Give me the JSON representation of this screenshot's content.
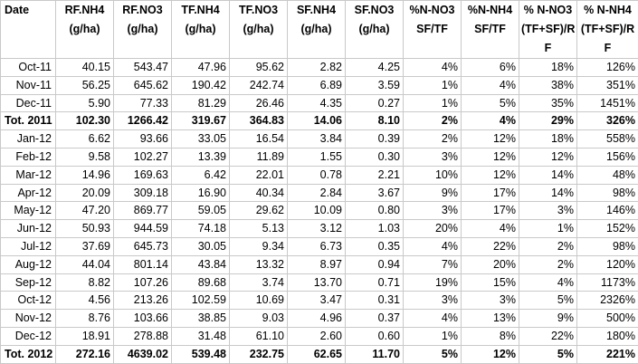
{
  "headers": [
    {
      "lines": [
        "Date"
      ]
    },
    {
      "lines": [
        "RF.NH4",
        "(g/ha)"
      ]
    },
    {
      "lines": [
        "RF.NO3",
        "(g/ha)"
      ]
    },
    {
      "lines": [
        "TF.NH4",
        "(g/ha)"
      ]
    },
    {
      "lines": [
        "TF.NO3",
        "(g/ha)"
      ]
    },
    {
      "lines": [
        "SF.NH4",
        "(g/ha)"
      ]
    },
    {
      "lines": [
        "SF.NO3",
        "(g/ha)"
      ]
    },
    {
      "lines": [
        "%N-NO3",
        "SF/TF"
      ]
    },
    {
      "lines": [
        "%N-NH4",
        "SF/TF"
      ]
    },
    {
      "lines": [
        "% N-NO3",
        "(TF+SF)/R",
        "F"
      ]
    },
    {
      "lines": [
        "% N-NH4",
        "(TF+SF)/R",
        "F"
      ]
    }
  ],
  "rows": [
    {
      "total": false,
      "cells": [
        "Oct-11",
        "40.15",
        "543.47",
        "47.96",
        "95.62",
        "2.82",
        "4.25",
        "4%",
        "6%",
        "18%",
        "126%"
      ]
    },
    {
      "total": false,
      "cells": [
        "Nov-11",
        "56.25",
        "645.62",
        "190.42",
        "242.74",
        "6.89",
        "3.59",
        "1%",
        "4%",
        "38%",
        "351%"
      ]
    },
    {
      "total": false,
      "cells": [
        "Dec-11",
        "5.90",
        "77.33",
        "81.29",
        "26.46",
        "4.35",
        "0.27",
        "1%",
        "5%",
        "35%",
        "1451%"
      ]
    },
    {
      "total": true,
      "cells": [
        "Tot. 2011",
        "102.30",
        "1266.42",
        "319.67",
        "364.83",
        "14.06",
        "8.10",
        "2%",
        "4%",
        "29%",
        "326%"
      ]
    },
    {
      "total": false,
      "cells": [
        "Jan-12",
        "6.62",
        "93.66",
        "33.05",
        "16.54",
        "3.84",
        "0.39",
        "2%",
        "12%",
        "18%",
        "558%"
      ]
    },
    {
      "total": false,
      "cells": [
        "Feb-12",
        "9.58",
        "102.27",
        "13.39",
        "11.89",
        "1.55",
        "0.30",
        "3%",
        "12%",
        "12%",
        "156%"
      ]
    },
    {
      "total": false,
      "cells": [
        "Mar-12",
        "14.96",
        "169.63",
        "6.42",
        "22.01",
        "0.78",
        "2.21",
        "10%",
        "12%",
        "14%",
        "48%"
      ]
    },
    {
      "total": false,
      "cells": [
        "Apr-12",
        "20.09",
        "309.18",
        "16.90",
        "40.34",
        "2.84",
        "3.67",
        "9%",
        "17%",
        "14%",
        "98%"
      ]
    },
    {
      "total": false,
      "cells": [
        "May-12",
        "47.20",
        "869.77",
        "59.05",
        "29.62",
        "10.09",
        "0.80",
        "3%",
        "17%",
        "3%",
        "146%"
      ]
    },
    {
      "total": false,
      "cells": [
        "Jun-12",
        "50.93",
        "944.59",
        "74.18",
        "5.13",
        "3.12",
        "1.03",
        "20%",
        "4%",
        "1%",
        "152%"
      ]
    },
    {
      "total": false,
      "cells": [
        "Jul-12",
        "37.69",
        "645.73",
        "30.05",
        "9.34",
        "6.73",
        "0.35",
        "4%",
        "22%",
        "2%",
        "98%"
      ]
    },
    {
      "total": false,
      "cells": [
        "Aug-12",
        "44.04",
        "801.14",
        "43.84",
        "13.32",
        "8.97",
        "0.94",
        "7%",
        "20%",
        "2%",
        "120%"
      ]
    },
    {
      "total": false,
      "cells": [
        "Sep-12",
        "8.82",
        "107.26",
        "89.68",
        "3.74",
        "13.70",
        "0.71",
        "19%",
        "15%",
        "4%",
        "1173%"
      ]
    },
    {
      "total": false,
      "cells": [
        "Oct-12",
        "4.56",
        "213.26",
        "102.59",
        "10.69",
        "3.47",
        "0.31",
        "3%",
        "3%",
        "5%",
        "2326%"
      ]
    },
    {
      "total": false,
      "cells": [
        "Nov-12",
        "8.76",
        "103.66",
        "38.85",
        "9.03",
        "4.96",
        "0.37",
        "4%",
        "13%",
        "9%",
        "500%"
      ]
    },
    {
      "total": false,
      "cells": [
        "Dec-12",
        "18.91",
        "278.88",
        "31.48",
        "61.10",
        "2.60",
        "0.60",
        "1%",
        "8%",
        "22%",
        "180%"
      ]
    },
    {
      "total": true,
      "cells": [
        "Tot. 2012",
        "272.16",
        "4639.02",
        "539.48",
        "232.75",
        "62.65",
        "11.70",
        "5%",
        "12%",
        "5%",
        "221%"
      ]
    }
  ]
}
